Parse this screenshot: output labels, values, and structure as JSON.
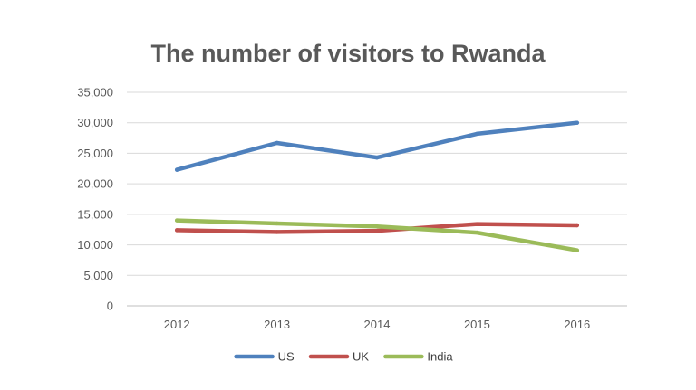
{
  "chart_data": {
    "type": "line",
    "title": "The number of visitors to Rwanda",
    "xlabel": "",
    "ylabel": "",
    "categories": [
      "2012",
      "2013",
      "2014",
      "2015",
      "2016"
    ],
    "ylim": [
      0,
      35000
    ],
    "yticks": [
      0,
      5000,
      10000,
      15000,
      20000,
      25000,
      30000,
      35000
    ],
    "ytick_labels": [
      "0",
      "5,000",
      "10,000",
      "15,000",
      "20,000",
      "25,000",
      "30,000",
      "35,000"
    ],
    "grid": true,
    "legend_position": "bottom",
    "series": [
      {
        "name": "US",
        "color": "#4f81bd",
        "values": [
          22300,
          26700,
          24300,
          28200,
          30000
        ]
      },
      {
        "name": "UK",
        "color": "#c0504d",
        "values": [
          12400,
          12100,
          12300,
          13400,
          13200
        ]
      },
      {
        "name": "India",
        "color": "#9bbb59",
        "values": [
          14000,
          13500,
          13000,
          12000,
          9100
        ]
      }
    ]
  }
}
